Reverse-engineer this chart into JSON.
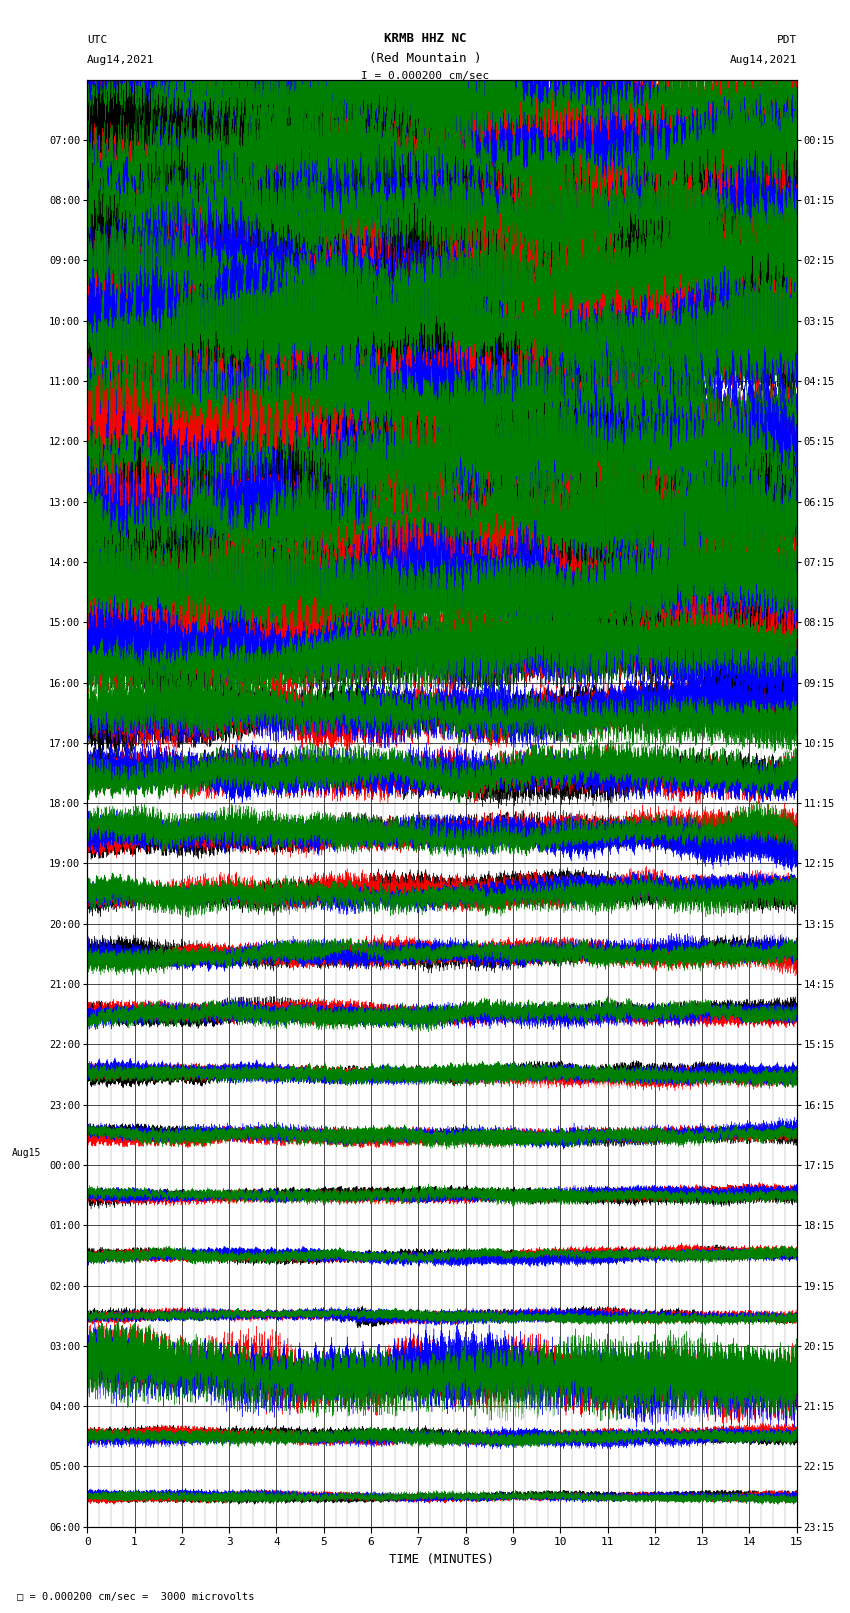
{
  "title_line1": "KRMB HHZ NC",
  "title_line2": "(Red Mountain )",
  "scale_label": "I = 0.000200 cm/sec",
  "bottom_label": "= 0.000200 cm/sec =  3000 microvolts",
  "utc_label": "UTC",
  "utc_date": "Aug14,2021",
  "pdt_label": "PDT",
  "pdt_date": "Aug14,2021",
  "xlabel": "TIME (MINUTES)",
  "left_times": [
    "07:00",
    "08:00",
    "09:00",
    "10:00",
    "11:00",
    "12:00",
    "13:00",
    "14:00",
    "15:00",
    "16:00",
    "17:00",
    "18:00",
    "19:00",
    "20:00",
    "21:00",
    "22:00",
    "23:00",
    "00:00",
    "01:00",
    "02:00",
    "03:00",
    "04:00",
    "05:00",
    "06:00"
  ],
  "right_times": [
    "00:15",
    "01:15",
    "02:15",
    "03:15",
    "04:15",
    "05:15",
    "06:15",
    "07:15",
    "08:15",
    "09:15",
    "10:15",
    "11:15",
    "12:15",
    "13:15",
    "14:15",
    "15:15",
    "16:15",
    "17:15",
    "18:15",
    "19:15",
    "20:15",
    "21:15",
    "22:15",
    "23:15"
  ],
  "aug15_row": 17,
  "n_rows": 24,
  "minutes_per_row": 15,
  "bg_color": "#ffffff",
  "trace_colors": [
    "#000000",
    "#ff0000",
    "#0000ff",
    "#008000"
  ],
  "row_amplitudes": [
    0.48,
    0.48,
    0.48,
    0.48,
    0.48,
    0.48,
    0.48,
    0.48,
    0.42,
    0.3,
    0.22,
    0.18,
    0.15,
    0.12,
    0.1,
    0.09,
    0.08,
    0.07,
    0.06,
    0.055,
    0.05,
    0.12,
    0.06,
    0.04
  ],
  "trace_linewidth": 0.3,
  "grid_linewidth": 0.4,
  "n_samples": 9000
}
